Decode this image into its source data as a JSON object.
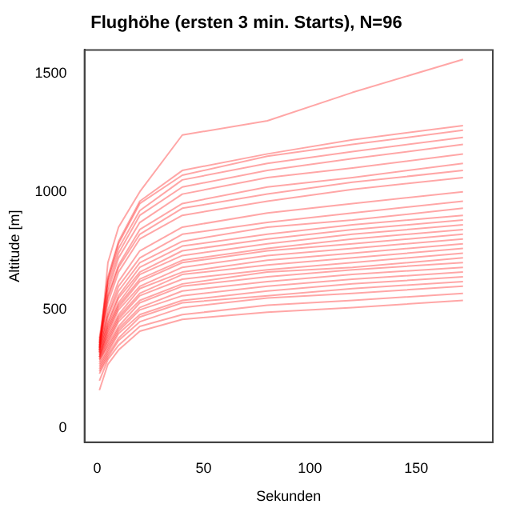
{
  "chart_data": {
    "type": "line",
    "title": "Flughöhe (ersten 3 min. Starts), N=96",
    "xlabel": "Sekunden",
    "ylabel": "Altitude [m]",
    "color": "#ff0000",
    "x": [
      1,
      5,
      10,
      20,
      40,
      80,
      120,
      172
    ],
    "xlim": [
      -6,
      186
    ],
    "xticks": [
      0,
      50,
      100,
      150
    ],
    "ylim": [
      -60,
      1600
    ],
    "yticks": [
      0,
      500,
      1000,
      1500
    ],
    "grid": false,
    "legend": false,
    "marker": "none",
    "line_style": "solid",
    "series": [
      {
        "values": [
          320,
          700,
          850,
          1000,
          1240,
          1300,
          1420,
          1560
        ]
      },
      {
        "values": [
          360,
          640,
          790,
          960,
          1090,
          1160,
          1220,
          1280
        ]
      },
      {
        "values": [
          340,
          630,
          780,
          950,
          1070,
          1150,
          1200,
          1260
        ]
      },
      {
        "values": [
          380,
          620,
          760,
          920,
          1050,
          1120,
          1170,
          1230
        ]
      },
      {
        "values": [
          350,
          600,
          740,
          900,
          1020,
          1090,
          1140,
          1200
        ]
      },
      {
        "values": [
          330,
          580,
          720,
          870,
          990,
          1060,
          1100,
          1160
        ]
      },
      {
        "values": [
          370,
          560,
          690,
          840,
          950,
          1020,
          1060,
          1120
        ]
      },
      {
        "values": [
          340,
          550,
          680,
          820,
          930,
          990,
          1040,
          1090
        ]
      },
      {
        "values": [
          360,
          530,
          660,
          800,
          900,
          960,
          1010,
          1060
        ]
      },
      {
        "values": [
          330,
          500,
          620,
          750,
          850,
          910,
          950,
          1000
        ]
      },
      {
        "values": [
          350,
          480,
          600,
          720,
          820,
          870,
          910,
          960
        ]
      },
      {
        "values": [
          320,
          470,
          580,
          700,
          790,
          850,
          880,
          930
        ]
      },
      {
        "values": [
          340,
          450,
          560,
          680,
          770,
          820,
          860,
          900
        ]
      },
      {
        "values": [
          310,
          440,
          550,
          660,
          750,
          800,
          840,
          880
        ]
      },
      {
        "values": [
          330,
          430,
          530,
          650,
          730,
          780,
          820,
          860
        ]
      },
      {
        "values": [
          300,
          420,
          520,
          630,
          710,
          760,
          800,
          840
        ]
      },
      {
        "values": [
          320,
          410,
          510,
          620,
          700,
          750,
          780,
          820
        ]
      },
      {
        "values": [
          300,
          400,
          500,
          600,
          680,
          730,
          760,
          800
        ]
      },
      {
        "values": [
          310,
          390,
          480,
          590,
          660,
          710,
          740,
          780
        ]
      },
      {
        "values": [
          290,
          380,
          470,
          570,
          650,
          690,
          720,
          760
        ]
      },
      {
        "values": [
          300,
          370,
          460,
          560,
          630,
          670,
          700,
          740
        ]
      },
      {
        "values": [
          280,
          360,
          450,
          540,
          610,
          660,
          680,
          720
        ]
      },
      {
        "values": [
          290,
          350,
          430,
          530,
          600,
          640,
          670,
          700
        ]
      },
      {
        "values": [
          270,
          340,
          420,
          510,
          580,
          620,
          650,
          680
        ]
      },
      {
        "values": [
          260,
          330,
          410,
          500,
          560,
          600,
          630,
          660
        ]
      },
      {
        "values": [
          250,
          320,
          400,
          480,
          540,
          580,
          610,
          640
        ]
      },
      {
        "values": [
          240,
          310,
          380,
          470,
          530,
          560,
          590,
          620
        ]
      },
      {
        "values": [
          230,
          300,
          370,
          450,
          510,
          550,
          570,
          600
        ]
      },
      {
        "values": [
          200,
          290,
          350,
          430,
          480,
          520,
          540,
          570
        ]
      },
      {
        "values": [
          160,
          270,
          330,
          410,
          460,
          490,
          510,
          540
        ]
      }
    ]
  }
}
